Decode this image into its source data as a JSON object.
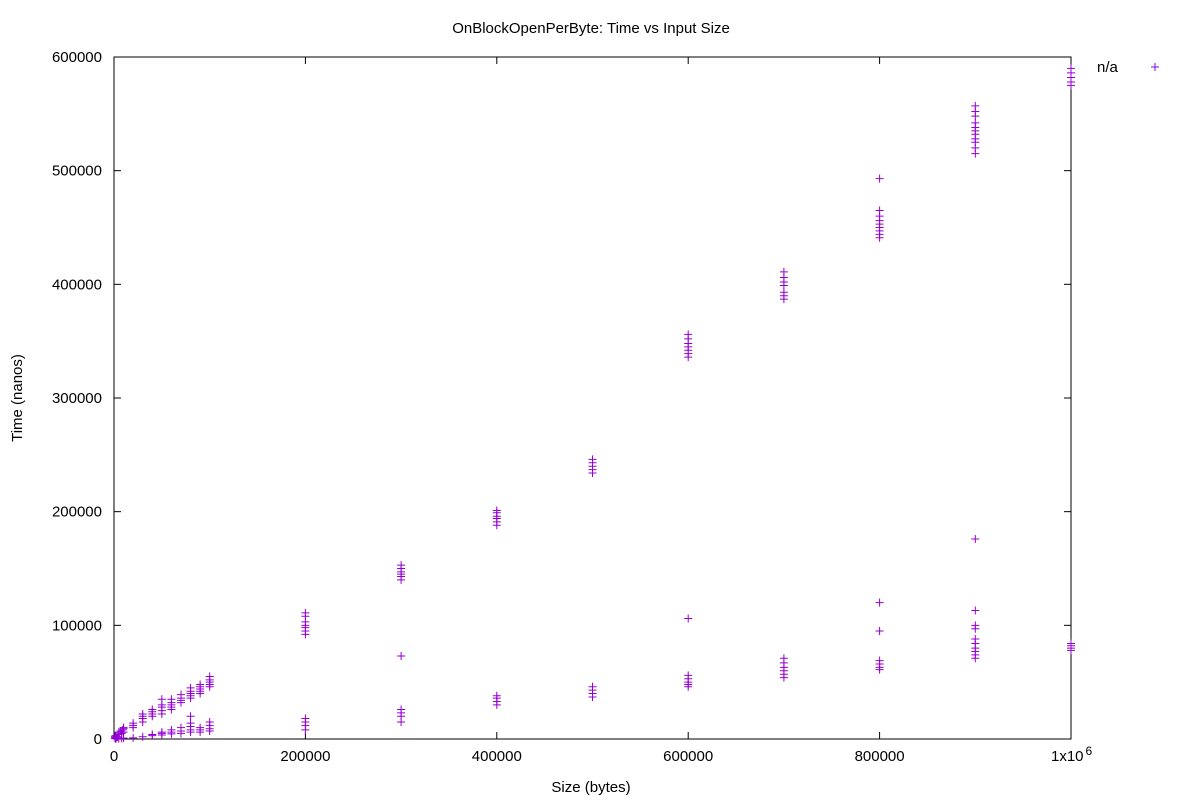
{
  "chart_data": {
    "type": "scatter",
    "title": "OnBlockOpenPerByte: Time vs Input Size",
    "xlabel": "Size (bytes)",
    "ylabel": "Time (nanos)",
    "xlim": [
      0,
      1000000
    ],
    "ylim": [
      0,
      600000
    ],
    "x_ticks": [
      0,
      200000,
      400000,
      600000,
      800000,
      1000000
    ],
    "x_tick_labels": [
      "0",
      "200000",
      "400000",
      "600000",
      "800000",
      "1x10"
    ],
    "x_tick_superscript": "6",
    "y_ticks": [
      0,
      100000,
      200000,
      300000,
      400000,
      500000,
      600000
    ],
    "y_tick_labels": [
      "0",
      "100000",
      "200000",
      "300000",
      "400000",
      "500000",
      "600000"
    ],
    "grid": false,
    "legend_position": "top-right",
    "marker": "+",
    "color": "#9400d3",
    "series": [
      {
        "name": "n/a",
        "points": [
          [
            1000,
            500
          ],
          [
            1000,
            1500
          ],
          [
            1000,
            2500
          ],
          [
            2000,
            1000
          ],
          [
            2000,
            3000
          ],
          [
            3000,
            1500
          ],
          [
            4000,
            2000
          ],
          [
            5000,
            4000
          ],
          [
            5000,
            6000
          ],
          [
            7000,
            7000
          ],
          [
            8000,
            5000
          ],
          [
            9000,
            8000
          ],
          [
            10000,
            6000
          ],
          [
            10000,
            9000
          ],
          [
            10000,
            10000
          ],
          [
            2000,
            200
          ],
          [
            5000,
            300
          ],
          [
            8000,
            500
          ],
          [
            10000,
            800
          ],
          [
            20000,
            10000
          ],
          [
            20000,
            12000
          ],
          [
            20000,
            14000
          ],
          [
            30000,
            15000
          ],
          [
            30000,
            18000
          ],
          [
            30000,
            20000
          ],
          [
            30000,
            22000
          ],
          [
            40000,
            20000
          ],
          [
            40000,
            22000
          ],
          [
            40000,
            24000
          ],
          [
            40000,
            26000
          ],
          [
            50000,
            22000
          ],
          [
            50000,
            25000
          ],
          [
            50000,
            28000
          ],
          [
            50000,
            30000
          ],
          [
            50000,
            35000
          ],
          [
            60000,
            26000
          ],
          [
            60000,
            28000
          ],
          [
            60000,
            30000
          ],
          [
            60000,
            32000
          ],
          [
            60000,
            35000
          ],
          [
            70000,
            32000
          ],
          [
            70000,
            34000
          ],
          [
            70000,
            36000
          ],
          [
            70000,
            39000
          ],
          [
            80000,
            36000
          ],
          [
            80000,
            38000
          ],
          [
            80000,
            40000
          ],
          [
            80000,
            42000
          ],
          [
            80000,
            45000
          ],
          [
            90000,
            40000
          ],
          [
            90000,
            42000
          ],
          [
            90000,
            44000
          ],
          [
            90000,
            46000
          ],
          [
            90000,
            48000
          ],
          [
            100000,
            46000
          ],
          [
            100000,
            48000
          ],
          [
            100000,
            50000
          ],
          [
            100000,
            52000
          ],
          [
            100000,
            55000
          ],
          [
            20000,
            1000
          ],
          [
            30000,
            2000
          ],
          [
            40000,
            3000
          ],
          [
            40000,
            4000
          ],
          [
            50000,
            3500
          ],
          [
            50000,
            5000
          ],
          [
            50000,
            6000
          ],
          [
            60000,
            4500
          ],
          [
            60000,
            6000
          ],
          [
            60000,
            8000
          ],
          [
            70000,
            5000
          ],
          [
            70000,
            7000
          ],
          [
            70000,
            10000
          ],
          [
            80000,
            6000
          ],
          [
            80000,
            8000
          ],
          [
            80000,
            11000
          ],
          [
            80000,
            14000
          ],
          [
            80000,
            20000
          ],
          [
            90000,
            6000
          ],
          [
            90000,
            8000
          ],
          [
            90000,
            10000
          ],
          [
            100000,
            7000
          ],
          [
            100000,
            9000
          ],
          [
            100000,
            12000
          ],
          [
            100000,
            15000
          ],
          [
            200000,
            92000
          ],
          [
            200000,
            95000
          ],
          [
            200000,
            98000
          ],
          [
            200000,
            100000
          ],
          [
            200000,
            103000
          ],
          [
            200000,
            108000
          ],
          [
            200000,
            111000
          ],
          [
            200000,
            8000
          ],
          [
            200000,
            12000
          ],
          [
            200000,
            15000
          ],
          [
            200000,
            18000
          ],
          [
            300000,
            140000
          ],
          [
            300000,
            143000
          ],
          [
            300000,
            145000
          ],
          [
            300000,
            147000
          ],
          [
            300000,
            150000
          ],
          [
            300000,
            153000
          ],
          [
            300000,
            15000
          ],
          [
            300000,
            20000
          ],
          [
            300000,
            23000
          ],
          [
            300000,
            26000
          ],
          [
            300000,
            73000
          ],
          [
            400000,
            188000
          ],
          [
            400000,
            191000
          ],
          [
            400000,
            194000
          ],
          [
            400000,
            196000
          ],
          [
            400000,
            199000
          ],
          [
            400000,
            201000
          ],
          [
            400000,
            30000
          ],
          [
            400000,
            33000
          ],
          [
            400000,
            36000
          ],
          [
            400000,
            38000
          ],
          [
            500000,
            234000
          ],
          [
            500000,
            237000
          ],
          [
            500000,
            240000
          ],
          [
            500000,
            243000
          ],
          [
            500000,
            246000
          ],
          [
            500000,
            37000
          ],
          [
            500000,
            40000
          ],
          [
            500000,
            43000
          ],
          [
            500000,
            46000
          ],
          [
            600000,
            336000
          ],
          [
            600000,
            339000
          ],
          [
            600000,
            342000
          ],
          [
            600000,
            345000
          ],
          [
            600000,
            348000
          ],
          [
            600000,
            352000
          ],
          [
            600000,
            356000
          ],
          [
            600000,
            46000
          ],
          [
            600000,
            48000
          ],
          [
            600000,
            50000
          ],
          [
            600000,
            53000
          ],
          [
            600000,
            56000
          ],
          [
            600000,
            106000
          ],
          [
            700000,
            387000
          ],
          [
            700000,
            390000
          ],
          [
            700000,
            393000
          ],
          [
            700000,
            399000
          ],
          [
            700000,
            402000
          ],
          [
            700000,
            406000
          ],
          [
            700000,
            411000
          ],
          [
            700000,
            54000
          ],
          [
            700000,
            57000
          ],
          [
            700000,
            60000
          ],
          [
            700000,
            63000
          ],
          [
            700000,
            67000
          ],
          [
            700000,
            71000
          ],
          [
            800000,
            441000
          ],
          [
            800000,
            444000
          ],
          [
            800000,
            447000
          ],
          [
            800000,
            450000
          ],
          [
            800000,
            453000
          ],
          [
            800000,
            456000
          ],
          [
            800000,
            460000
          ],
          [
            800000,
            465000
          ],
          [
            800000,
            493000
          ],
          [
            800000,
            61000
          ],
          [
            800000,
            63000
          ],
          [
            800000,
            66000
          ],
          [
            800000,
            69000
          ],
          [
            800000,
            95000
          ],
          [
            800000,
            120000
          ],
          [
            900000,
            515000
          ],
          [
            900000,
            520000
          ],
          [
            900000,
            525000
          ],
          [
            900000,
            528000
          ],
          [
            900000,
            532000
          ],
          [
            900000,
            535000
          ],
          [
            900000,
            538000
          ],
          [
            900000,
            542000
          ],
          [
            900000,
            548000
          ],
          [
            900000,
            552000
          ],
          [
            900000,
            557000
          ],
          [
            900000,
            71000
          ],
          [
            900000,
            74000
          ],
          [
            900000,
            77000
          ],
          [
            900000,
            80000
          ],
          [
            900000,
            84000
          ],
          [
            900000,
            88000
          ],
          [
            900000,
            97000
          ],
          [
            900000,
            100000
          ],
          [
            900000,
            113000
          ],
          [
            900000,
            176000
          ],
          [
            1000000,
            575000
          ],
          [
            1000000,
            578000
          ],
          [
            1000000,
            582000
          ],
          [
            1000000,
            586000
          ],
          [
            1000000,
            590000
          ],
          [
            1000000,
            78000
          ],
          [
            1000000,
            80000
          ],
          [
            1000000,
            82000
          ],
          [
            1000000,
            84000
          ]
        ]
      }
    ]
  }
}
